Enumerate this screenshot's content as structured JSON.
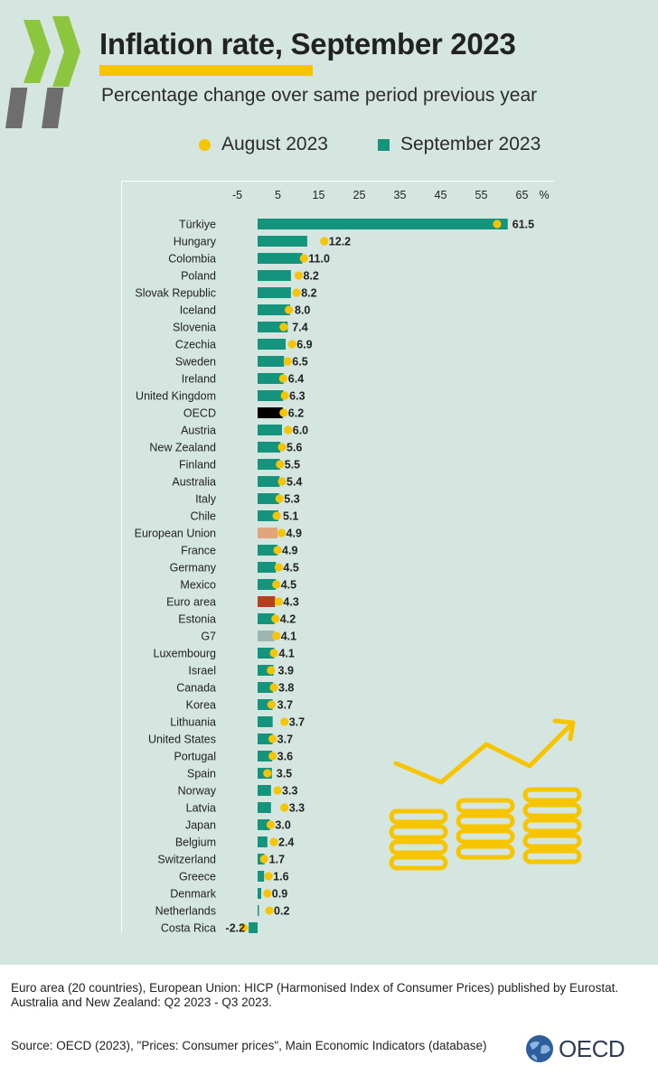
{
  "title": "Inflation rate, September 2023",
  "subtitle": "Percentage change over same period previous year",
  "legend": {
    "august": "August 2023",
    "september": "September 2023"
  },
  "colors": {
    "september": "#14947d",
    "august": "#f6c500",
    "oecd": "#000000",
    "european_union": "#e0a57a",
    "euro_area": "#b5401b",
    "g7": "#9fb5b2",
    "background": "#d4e6df"
  },
  "footer": {
    "note1": "Euro area (20 countries), European Union: HICP (Harmonised Index of Consumer Prices) published by Eurostat.",
    "note2": "Australia and New Zealand: Q2 2023 - Q3 2023.",
    "source": "Source: OECD (2023), \"Prices: Consumer prices\", Main Economic Indicators (database)"
  },
  "logo": {
    "text": "OECD"
  },
  "chart_data": {
    "type": "bar",
    "orientation": "horizontal",
    "x_unit": "%",
    "xlim": [
      -10,
      67
    ],
    "x_ticks": [
      -5,
      5,
      15,
      25,
      35,
      45,
      55,
      65
    ],
    "grid": false,
    "legend_position": "top",
    "categories": [
      "Türkiye",
      "Hungary",
      "Colombia",
      "Poland",
      "Slovak Republic",
      "Iceland",
      "Slovenia",
      "Czechia",
      "Sweden",
      "Ireland",
      "United Kingdom",
      "OECD",
      "Austria",
      "New Zealand",
      "Finland",
      "Australia",
      "Italy",
      "Chile",
      "European Union",
      "France",
      "Germany",
      "Mexico",
      "Euro area",
      "Estonia",
      "G7",
      "Luxembourg",
      "Israel",
      "Canada",
      "Korea",
      "Lithuania",
      "United States",
      "Portugal",
      "Spain",
      "Norway",
      "Latvia",
      "Japan",
      "Belgium",
      "Switzerland",
      "Greece",
      "Denmark",
      "Netherlands",
      "Costa Rica"
    ],
    "series": [
      {
        "name": "September 2023",
        "values": [
          61.5,
          12.2,
          11.0,
          8.2,
          8.2,
          8.0,
          7.4,
          6.9,
          6.5,
          6.4,
          6.3,
          6.2,
          6.0,
          5.6,
          5.5,
          5.4,
          5.3,
          5.1,
          4.9,
          4.9,
          4.5,
          4.5,
          4.3,
          4.2,
          4.1,
          4.1,
          3.9,
          3.8,
          3.7,
          3.7,
          3.7,
          3.6,
          3.5,
          3.3,
          3.3,
          3.0,
          2.4,
          1.7,
          1.6,
          0.9,
          0.2,
          -2.2
        ]
      },
      {
        "name": "August 2023",
        "values": [
          58.9,
          16.4,
          11.4,
          10.1,
          9.6,
          7.7,
          6.4,
          8.5,
          7.4,
          6.3,
          6.7,
          6.4,
          7.5,
          6.0,
          5.5,
          6.0,
          5.4,
          4.7,
          5.9,
          4.9,
          5.2,
          4.6,
          5.2,
          4.4,
          4.6,
          4.0,
          3.3,
          4.0,
          3.4,
          6.6,
          3.7,
          3.7,
          2.4,
          4.9,
          6.6,
          3.2,
          4.0,
          1.6,
          2.7,
          2.4,
          2.9,
          -3.4
        ]
      }
    ],
    "highlight": {
      "OECD": "oecd",
      "European Union": "european_union",
      "Euro area": "euro_area",
      "G7": "g7"
    }
  }
}
